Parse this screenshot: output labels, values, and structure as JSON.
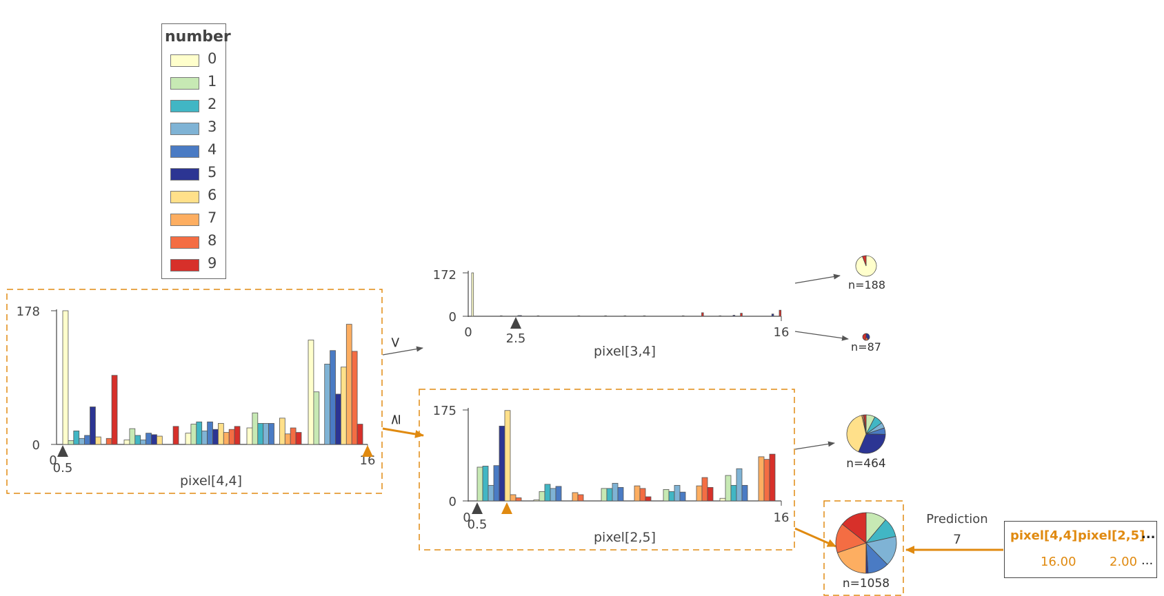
{
  "legend": {
    "title": "number",
    "items": [
      {
        "label": "0",
        "color": "#ffffcc"
      },
      {
        "label": "1",
        "color": "#c7e9b4"
      },
      {
        "label": "2",
        "color": "#41b6c4"
      },
      {
        "label": "3",
        "color": "#7fb3d5"
      },
      {
        "label": "4",
        "color": "#4a7bc4"
      },
      {
        "label": "5",
        "color": "#2c3593"
      },
      {
        "label": "6",
        "color": "#ffe08a"
      },
      {
        "label": "7",
        "color": "#fdae61"
      },
      {
        "label": "8",
        "color": "#f46d43"
      },
      {
        "label": "9",
        "color": "#d7302a"
      }
    ]
  },
  "nodes": {
    "root": {
      "feature": "pixel[4,4]",
      "ymax": "178",
      "ymin": "0",
      "xmin": "0",
      "xmax": "16",
      "split": "0.5"
    },
    "left": {
      "feature": "pixel[3,4]",
      "ymax": "172",
      "ymin": "0",
      "xmin": "0",
      "xmax": "16",
      "split": "2.5"
    },
    "right": {
      "feature": "pixel[2,5]",
      "ymax": "175",
      "ymin": "0",
      "xmin": "0",
      "xmax": "16",
      "split": "0.5"
    }
  },
  "edge_labels": {
    "less": "<",
    "ge": "≥"
  },
  "leaves": [
    {
      "n": "n=188"
    },
    {
      "n": "n=87"
    },
    {
      "n": "n=464"
    },
    {
      "n": "n=1058"
    }
  ],
  "prediction": {
    "label": "Prediction",
    "value": "7",
    "features": [
      {
        "name": "pixel[4,4]",
        "value": "16.00"
      },
      {
        "name": "pixel[2,5]",
        "value": "2.00"
      }
    ],
    "ellipsis": "..."
  },
  "chart_data": [
    {
      "type": "bar",
      "name": "pixel[4,4]",
      "xlabel": "pixel[4,4]",
      "ylim": [
        0,
        178
      ],
      "xlim": [
        0,
        16
      ],
      "split": 0.5,
      "highlight_value": 16,
      "bins": [
        [
          178,
          5,
          18,
          8,
          12,
          50,
          10,
          0,
          8,
          92
        ],
        [
          6,
          21,
          12,
          6,
          15,
          13,
          11,
          0,
          0,
          24
        ],
        [
          15,
          27,
          30,
          18,
          30,
          20,
          28,
          16,
          20,
          24
        ],
        [
          22,
          42,
          28,
          28,
          28,
          0,
          35,
          14,
          22,
          16
        ],
        [
          139,
          70,
          0,
          107,
          125,
          67,
          103,
          160,
          124,
          27
        ]
      ]
    },
    {
      "type": "bar",
      "name": "pixel[3,4]",
      "xlabel": "pixel[3,4]",
      "ylim": [
        0,
        172
      ],
      "xlim": [
        0,
        16
      ],
      "split": 2.5,
      "bins_count": 16,
      "bars": [
        [
          172,
          0,
          0,
          0,
          0,
          0,
          0,
          0,
          0,
          0
        ],
        [
          0,
          0,
          0,
          0,
          0,
          2,
          0,
          0,
          0,
          0
        ],
        [
          0,
          0,
          0,
          0,
          3,
          3,
          0,
          0,
          0,
          0
        ],
        [
          0,
          0,
          0,
          0,
          2,
          0,
          0,
          0,
          0,
          0
        ],
        [
          0,
          0,
          0,
          0,
          0,
          0,
          0,
          0,
          0,
          0
        ],
        [
          0,
          0,
          0,
          0,
          0,
          2,
          0,
          0,
          0,
          0
        ],
        [
          0,
          0,
          0,
          0,
          0,
          0,
          0,
          0,
          0,
          2
        ],
        [
          0,
          0,
          0,
          0,
          0,
          0,
          0,
          0,
          0,
          2
        ],
        [
          0,
          0,
          0,
          0,
          0,
          0,
          0,
          0,
          0,
          2
        ],
        [
          0,
          0,
          0,
          0,
          0,
          0,
          0,
          0,
          0,
          0
        ],
        [
          0,
          0,
          0,
          0,
          0,
          0,
          0,
          0,
          0,
          2
        ],
        [
          0,
          0,
          0,
          0,
          0,
          0,
          0,
          0,
          0,
          14
        ],
        [
          0,
          0,
          0,
          0,
          0,
          0,
          0,
          0,
          2,
          0
        ],
        [
          0,
          0,
          0,
          0,
          0,
          4,
          0,
          0,
          0,
          12
        ],
        [
          0,
          0,
          0,
          0,
          0,
          0,
          0,
          0,
          0,
          0
        ],
        [
          0,
          0,
          0,
          0,
          0,
          9,
          0,
          0,
          0,
          24
        ]
      ]
    },
    {
      "type": "bar",
      "name": "pixel[2,5]",
      "xlabel": "pixel[2,5]",
      "ylim": [
        0,
        175
      ],
      "xlim": [
        0,
        16
      ],
      "split": 0.5,
      "highlight_value": 2,
      "bins": [
        [
          0,
          65,
          67,
          30,
          68,
          144,
          174,
          12,
          6,
          0
        ],
        [
          2,
          18,
          32,
          24,
          28,
          0,
          0,
          16,
          12,
          0
        ],
        [
          0,
          24,
          24,
          34,
          26,
          0,
          0,
          29,
          24,
          8
        ],
        [
          0,
          22,
          18,
          30,
          17,
          0,
          0,
          29,
          45,
          26
        ],
        [
          5,
          49,
          30,
          62,
          30,
          0,
          0,
          85,
          80,
          90
        ]
      ]
    },
    {
      "type": "pie",
      "name": "leaf n=188",
      "values": [
        177,
        0,
        0,
        0,
        0,
        0,
        0,
        0,
        0,
        11
      ]
    },
    {
      "type": "pie",
      "name": "leaf n=87",
      "values": [
        0,
        0,
        0,
        0,
        0,
        34,
        0,
        0,
        14,
        39
      ]
    },
    {
      "type": "pie",
      "name": "leaf n=464",
      "values": [
        0,
        35,
        35,
        22,
        25,
        145,
        185,
        5,
        4,
        8
      ]
    },
    {
      "type": "pie",
      "name": "leaf n=1058",
      "values": [
        0,
        118,
        110,
        170,
        120,
        12,
        0,
        208,
        168,
        152
      ]
    }
  ]
}
